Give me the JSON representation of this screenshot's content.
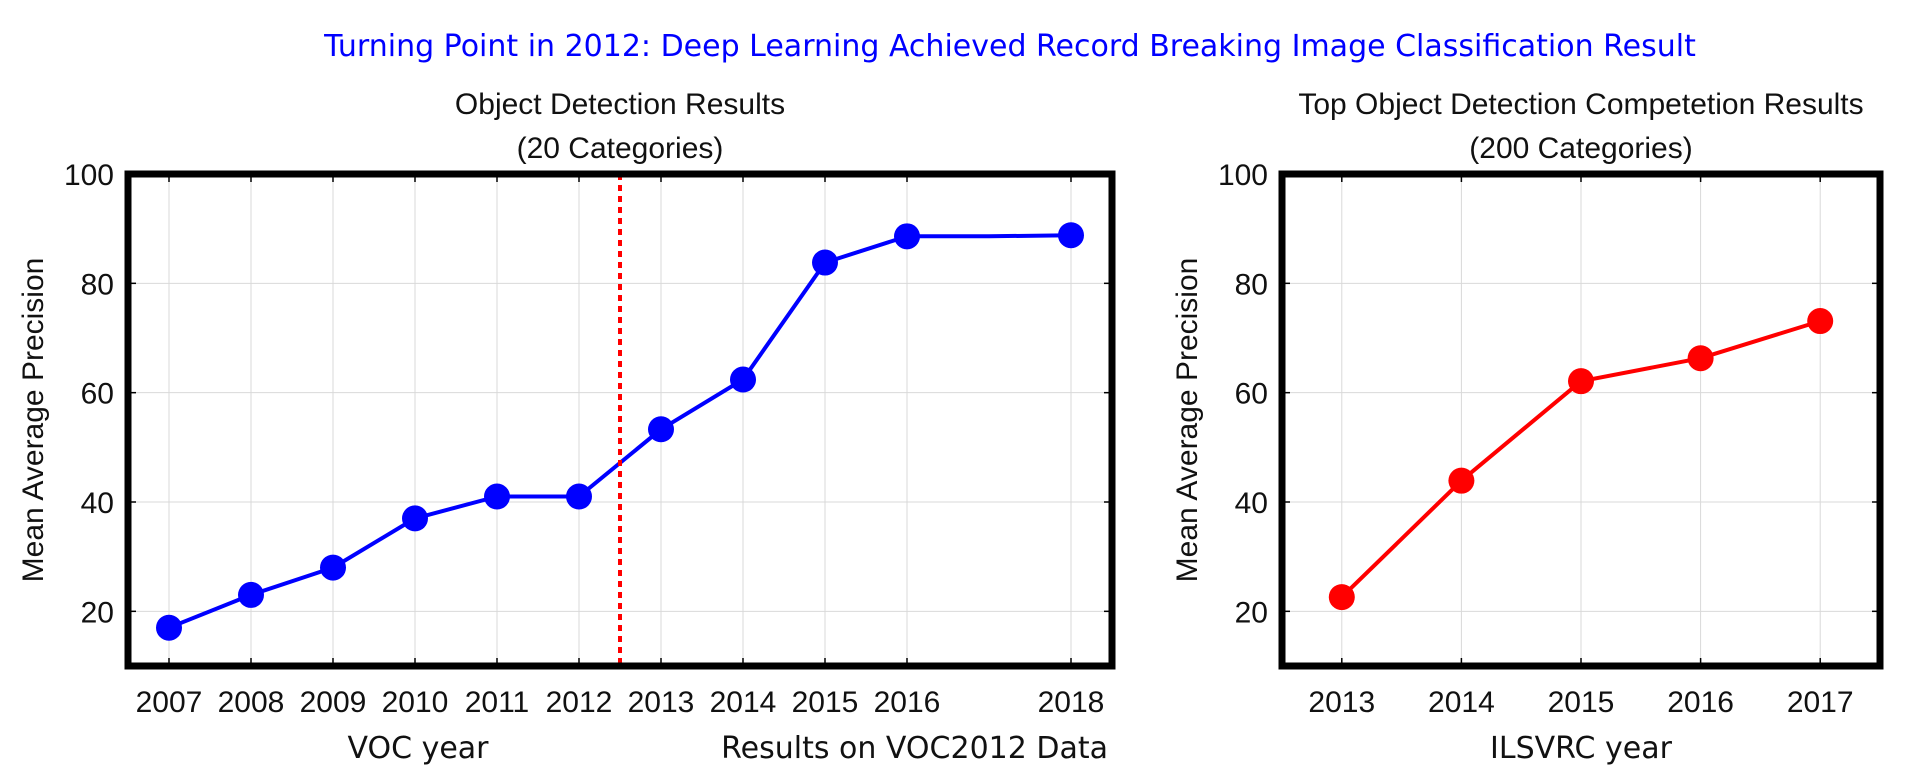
{
  "suptitle": "Turning Point in 2012: Deep Learning Achieved Record Breaking Image Classification Result",
  "colors": {
    "suptitle": "#0000ff",
    "voc_series": "#0000ff",
    "ilsvrc_series": "#ff0000",
    "marker_line": "#ff0000"
  },
  "chart_data": [
    {
      "type": "line",
      "title": [
        "Object Detection Results",
        "(20 Categories)"
      ],
      "xlabel": "VOC year",
      "ylabel": "Mean Average Precision",
      "annotation": "Results on VOC2012 Data",
      "x": [
        2007,
        2008,
        2009,
        2010,
        2011,
        2012,
        2013,
        2014,
        2015,
        2016,
        2017,
        2018
      ],
      "x_tick_labels": [
        "2007",
        "2008",
        "2009",
        "2010",
        "2011",
        "2012",
        "2013",
        "2014",
        "2015",
        "2016",
        "2018"
      ],
      "y_ticks": [
        20,
        40,
        60,
        80,
        100
      ],
      "xlim": [
        2006.5,
        2018.5
      ],
      "ylim": [
        10,
        100
      ],
      "grid": true,
      "vertical_line_x": 2012.5,
      "series": [
        {
          "values": [
            17,
            23,
            28,
            37,
            41,
            41,
            53.3,
            62.4,
            83.8,
            88.6,
            88.6,
            88.8
          ],
          "color": "#0000ff"
        }
      ]
    },
    {
      "type": "line",
      "title": [
        "Top Object Detection Competetion Results",
        "(200 Categories)"
      ],
      "xlabel": "ILSVRC year",
      "ylabel": "Mean Average Precision",
      "x": [
        2013,
        2014,
        2015,
        2016,
        2017
      ],
      "x_tick_labels": [
        "2013",
        "2014",
        "2015",
        "2016",
        "2017"
      ],
      "y_ticks": [
        20,
        40,
        60,
        80,
        100
      ],
      "xlim": [
        2012.5,
        2017.5
      ],
      "ylim": [
        10,
        100
      ],
      "grid": true,
      "series": [
        {
          "values": [
            22.6,
            43.9,
            62.1,
            66.3,
            73.1
          ],
          "color": "#ff0000"
        }
      ]
    }
  ]
}
